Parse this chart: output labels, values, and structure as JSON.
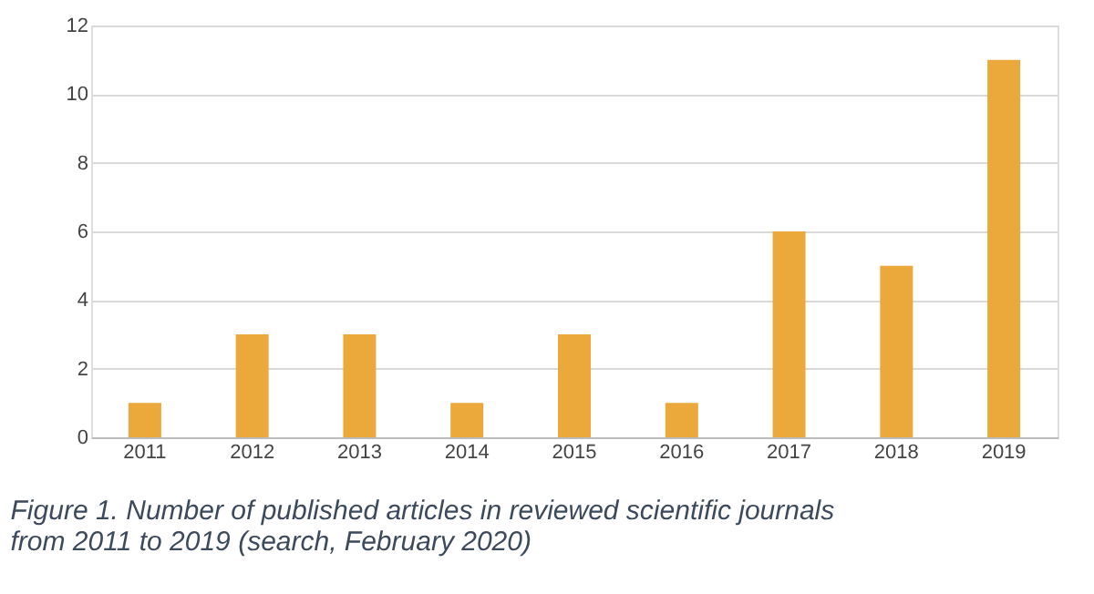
{
  "chart_data": {
    "type": "bar",
    "categories": [
      "2011",
      "2012",
      "2013",
      "2014",
      "2015",
      "2016",
      "2017",
      "2018",
      "2019"
    ],
    "values": [
      1,
      3,
      3,
      1,
      3,
      1,
      6,
      5,
      11
    ],
    "color": "#eaa93a",
    "ylim": [
      0,
      12
    ],
    "yticks": [
      0,
      2,
      4,
      6,
      8,
      10,
      12
    ],
    "grid": "y",
    "annotations": [
      "Figure 1. Number of published articles in reviewed scientific journals from 2011 to 2019 (search, February 2020)"
    ]
  }
}
